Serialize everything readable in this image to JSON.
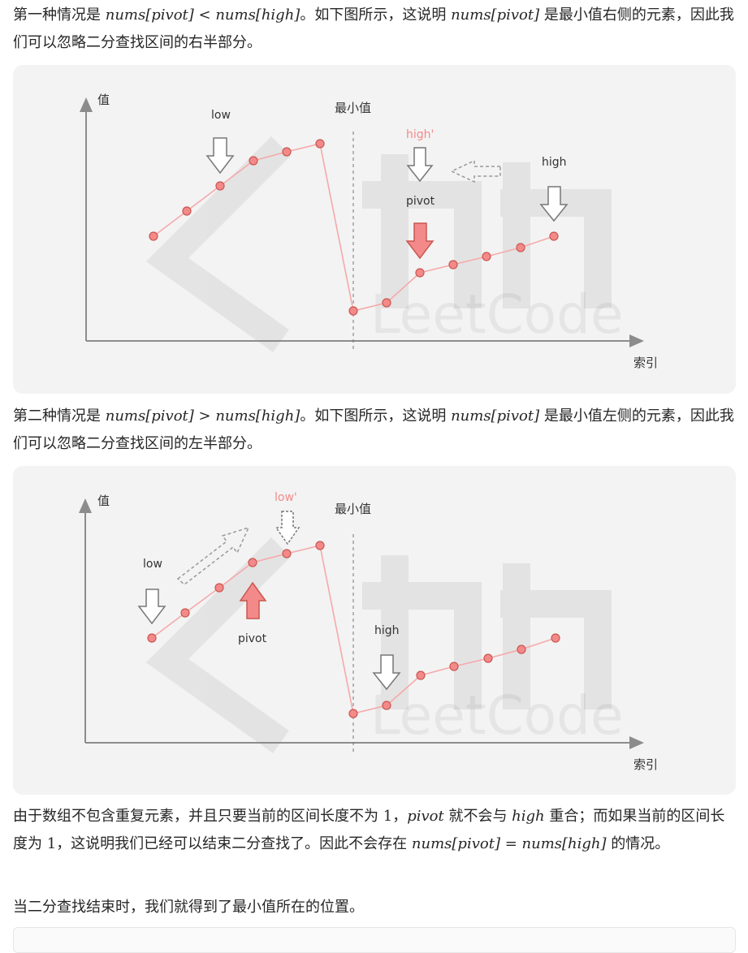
{
  "p1": {
    "a": "第一种情况是 ",
    "m1": "nums[pivot] < nums[high]",
    "b": "。如下图所示，这说明 ",
    "m2": "nums[pivot]",
    "c": " 是最小值右侧的元素，因此我们可以忽略二分查找区间的右半部分。"
  },
  "p2": {
    "a": "第二种情况是 ",
    "m1": "nums[pivot] > nums[high]",
    "b": "。如下图所示，这说明 ",
    "m2": "nums[pivot]",
    "c": " 是最小值左侧的元素，因此我们可以忽略二分查找区间的左半部分。"
  },
  "p3": {
    "a": "由于数组不包含重复元素，并且只要当前的区间长度不为 ",
    "n1": "1",
    "b": "，",
    "m1": "pivot",
    "c": " 就不会与 ",
    "m2": "high",
    "d": " 重合；而如果当前的区间长度为 ",
    "n2": "1",
    "e": "，这说明我们已经可以结束二分查找了。因此不会存在 ",
    "m3": "nums[pivot] = nums[high]",
    "f": " 的情况。"
  },
  "p4": {
    "text": "当二分查找结束时，我们就得到了最小值所在的位置。"
  },
  "figure1": {
    "y_axis_label": "值",
    "x_axis_label": "索引",
    "min_label": "最小值",
    "low_label": "low",
    "high_prime_label": "high'",
    "pivot_label": "pivot",
    "high_label": "high",
    "watermark": "LeetCode"
  },
  "figure2": {
    "y_axis_label": "值",
    "x_axis_label": "索引",
    "min_label": "最小值",
    "low_label": "low",
    "low_prime_label": "low'",
    "pivot_label": "pivot",
    "high_label": "high",
    "watermark": "LeetCode"
  },
  "colors": {
    "point_fill": "#f4898a",
    "point_stroke": "#c9574f",
    "line": "#f6a9aa",
    "pivot_arrow": "#f4898a",
    "prime_label": "#f4898a",
    "axis": "#8c8c8c",
    "figure_bg": "#f3f3f3"
  }
}
